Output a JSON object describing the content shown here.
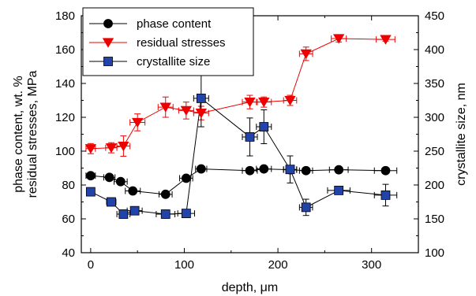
{
  "chart_data": {
    "type": "line",
    "title": "",
    "xlabel": "depth, μm",
    "ylabel": [
      "phase content, wt. %",
      "residual stresses, MPa"
    ],
    "y2label": "crystallite size, nm",
    "xlim": [
      -10,
      350
    ],
    "ylim": [
      40,
      180
    ],
    "y2lim": [
      100,
      450
    ],
    "x_ticks": [
      0,
      100,
      200,
      300
    ],
    "y_ticks": [
      40,
      60,
      80,
      100,
      120,
      140,
      160,
      180
    ],
    "y2_ticks": [
      100,
      150,
      200,
      250,
      300,
      350,
      400,
      450
    ],
    "grid": false,
    "legend_position": "top-left",
    "series": [
      {
        "name": "phase content",
        "axis": "left",
        "marker": "circle",
        "color": "#000000",
        "x": [
          0,
          20,
          32,
          45,
          80,
          102,
          118,
          170,
          185,
          213,
          230,
          265,
          315
        ],
        "y": [
          85.5,
          84.5,
          82,
          76.5,
          74.5,
          84,
          89.5,
          88.5,
          89.5,
          89,
          88.5,
          89,
          88.5
        ],
        "xerr": [
          5,
          6,
          7,
          8,
          7,
          7,
          6,
          8,
          8,
          7,
          7,
          10,
          12
        ],
        "yerr": [
          0,
          0,
          0,
          0,
          0,
          0,
          0,
          0,
          0,
          0,
          0,
          0,
          0
        ]
      },
      {
        "name": "residual stresses",
        "axis": "left",
        "marker": "triangle-down",
        "color": "#ee0000",
        "x": [
          0,
          22,
          35,
          50,
          80,
          102,
          118,
          170,
          185,
          213,
          230,
          265,
          315
        ],
        "y": [
          101.5,
          102,
          103,
          117,
          126,
          124,
          122.5,
          129,
          129,
          130,
          157.5,
          166.5,
          166
        ],
        "xerr": [
          5,
          6,
          7,
          8,
          8,
          8,
          8,
          8,
          8,
          7,
          7,
          8,
          10
        ],
        "yerr": [
          3,
          3,
          6,
          5,
          6,
          5,
          4,
          4,
          3,
          3,
          4,
          2,
          1
        ]
      },
      {
        "name": "crystallite size",
        "axis": "right",
        "marker": "square",
        "color": "#2244aa",
        "x": [
          0,
          22,
          35,
          47,
          80,
          102,
          118,
          170,
          185,
          213,
          230,
          265,
          315
        ],
        "y": [
          190,
          175,
          157,
          162,
          157,
          158,
          328,
          271,
          286,
          223,
          167,
          192,
          185
        ],
        "xerr": [
          4,
          5,
          7,
          8,
          10,
          9,
          8,
          8,
          8,
          7,
          7,
          12,
          12
        ],
        "yerr": [
          0,
          0,
          6,
          6,
          6,
          0,
          42,
          28,
          25,
          20,
          12,
          0,
          16
        ]
      }
    ]
  }
}
